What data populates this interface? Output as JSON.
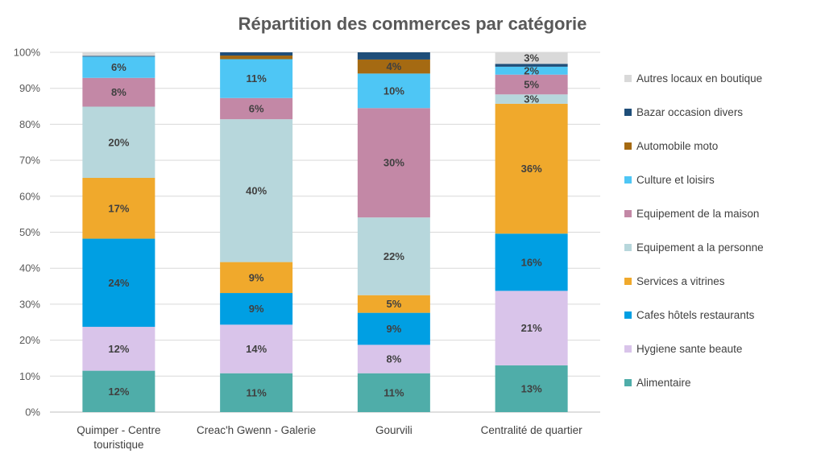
{
  "chart_data": {
    "type": "bar",
    "stacked": true,
    "percent": true,
    "title": "Répartition des commerces par catégorie",
    "xlabel": "",
    "ylabel": "",
    "ylim": [
      0,
      100
    ],
    "y_ticks": [
      "0%",
      "10%",
      "20%",
      "30%",
      "40%",
      "50%",
      "60%",
      "70%",
      "80%",
      "90%",
      "100%"
    ],
    "grid": true,
    "legend_position": "right",
    "categories": [
      "Quimper - Centre touristique",
      "Creac'h Gwenn - Galerie",
      "Gourvili",
      "Centralité de quartier"
    ],
    "category_lines": [
      [
        "Quimper - Centre",
        "touristique"
      ],
      [
        "Creac'h Gwenn - Galerie"
      ],
      [
        "Gourvili"
      ],
      [
        "Centralité de quartier"
      ]
    ],
    "series": [
      {
        "name": "Alimentaire",
        "color": "#4fada9",
        "values": [
          11.5,
          10.8,
          10.8,
          13.0
        ],
        "labels": [
          "12%",
          "11%",
          "11%",
          "13%"
        ]
      },
      {
        "name": "Hygiene sante beaute",
        "color": "#d9c4ea",
        "values": [
          12.2,
          13.5,
          7.9,
          20.7
        ],
        "labels": [
          "12%",
          "14%",
          "8%",
          "21%"
        ]
      },
      {
        "name": "Cafes hôtels restaurants",
        "color": "#009fe3",
        "values": [
          24.5,
          8.8,
          8.9,
          15.9
        ],
        "labels": [
          "24%",
          "9%",
          "9%",
          "16%"
        ]
      },
      {
        "name": "Services a vitrines",
        "color": "#f0a92c",
        "values": [
          16.9,
          8.6,
          4.9,
          36.1
        ],
        "labels": [
          "17%",
          "9%",
          "5%",
          "36%"
        ]
      },
      {
        "name": "Equipement a la personne",
        "color": "#b7d7dc",
        "values": [
          19.8,
          39.7,
          21.6,
          2.6
        ],
        "labels": [
          "20%",
          "40%",
          "22%",
          "3%"
        ]
      },
      {
        "name": "Equipement de la maison",
        "color": "#c388a6",
        "values": [
          8.0,
          5.9,
          30.4,
          5.5
        ],
        "labels": [
          "8%",
          "6%",
          "30%",
          "5%"
        ]
      },
      {
        "name": "Culture et loisirs",
        "color": "#4ec6f5",
        "values": [
          5.9,
          10.8,
          9.6,
          2.2
        ],
        "labels": [
          "6%",
          "11%",
          "10%",
          "2%"
        ]
      },
      {
        "name": "Bazar occasion divers",
        "color": "#1f4e79",
        "values": [
          0.2,
          0.9,
          2.0,
          0.8
        ],
        "labels": [
          "",
          "",
          "",
          ""
        ]
      },
      {
        "name": "Automobile moto",
        "color": "#a56a12",
        "values": [
          0.0,
          1.0,
          3.9,
          0.0
        ],
        "labels": [
          "",
          "",
          "4%",
          ""
        ]
      },
      {
        "name": "Autres locaux en boutique",
        "color": "#d9d9d9",
        "values": [
          1.0,
          0.0,
          0.0,
          3.2
        ],
        "labels": [
          "",
          "",
          "",
          "3%"
        ]
      }
    ],
    "stack_order": [
      "Alimentaire",
      "Hygiene sante beaute",
      "Cafes hôtels restaurants",
      "Services a vitrines",
      "Equipement a la personne",
      "Equipement de la maison",
      "Culture et loisirs",
      "Automobile moto",
      "Bazar occasion divers",
      "Autres locaux en boutique"
    ],
    "legend_order": [
      "Autres locaux en boutique",
      "Bazar occasion divers",
      "Automobile moto",
      "Culture et loisirs",
      "Equipement de la maison",
      "Equipement a la personne",
      "Services a vitrines",
      "Cafes hôtels restaurants",
      "Hygiene sante beaute",
      "Alimentaire"
    ]
  }
}
